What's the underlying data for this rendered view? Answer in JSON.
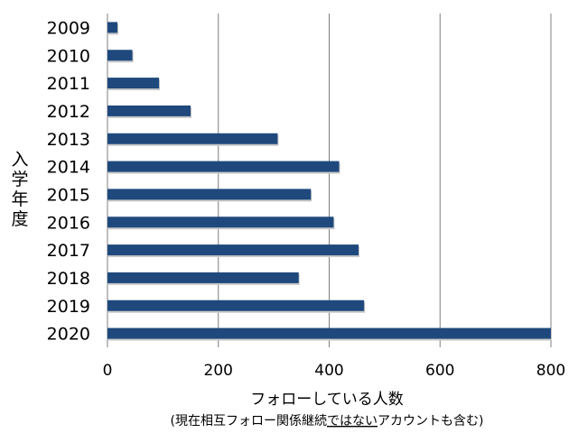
{
  "chart_data": {
    "type": "bar",
    "orientation": "horizontal",
    "categories": [
      "2009",
      "2010",
      "2011",
      "2012",
      "2013",
      "2014",
      "2015",
      "2016",
      "2017",
      "2018",
      "2019",
      "2020"
    ],
    "values": [
      18,
      45,
      93,
      150,
      307,
      418,
      367,
      408,
      453,
      345,
      463,
      800
    ],
    "bar_color": "#1F497D",
    "xlim": [
      0,
      800
    ],
    "xticks": [
      "0",
      "200",
      "400",
      "600",
      "800"
    ],
    "grid": "vertical",
    "ylabel": "入学年度",
    "xlabel": "フォローしている人数",
    "xlabel_note": {
      "before": "(現在相互フォロー関係継続",
      "underlined": "ではない",
      "after": "アカウントも含む)"
    }
  }
}
